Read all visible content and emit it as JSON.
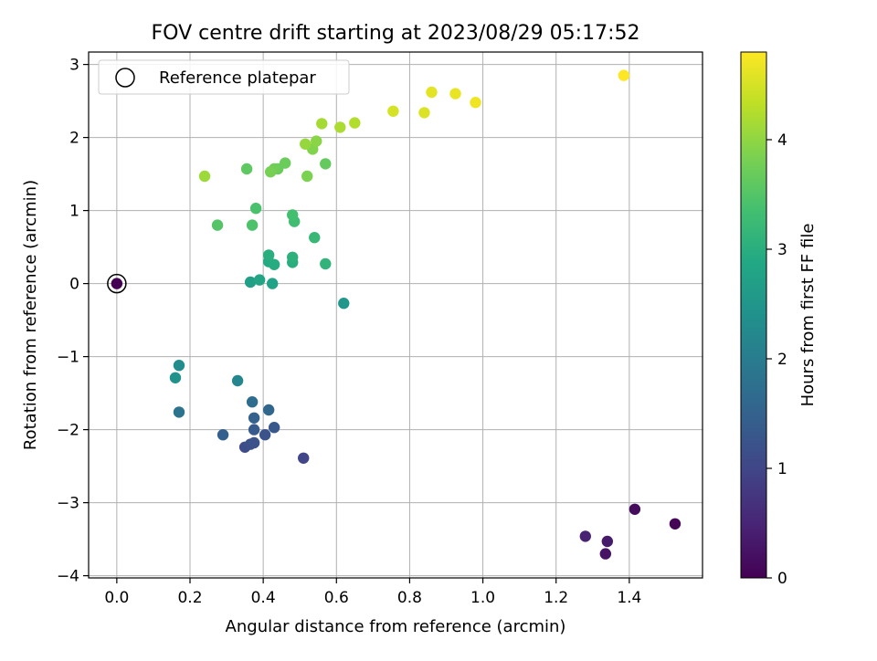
{
  "chart_data": {
    "type": "scatter",
    "title": "FOV centre drift starting at 2023/08/29 05:17:52",
    "xlabel": "Angular distance from reference (arcmin)",
    "ylabel": "Rotation from reference (arcmin)",
    "xlim": [
      -0.077,
      1.6
    ],
    "ylim": [
      -4.03,
      3.17
    ],
    "xticks": [
      0.0,
      0.2,
      0.4,
      0.6,
      0.8,
      1.0,
      1.2,
      1.4
    ],
    "xtick_labels": [
      "0.0",
      "0.2",
      "0.4",
      "0.6",
      "0.8",
      "1.0",
      "1.2",
      "1.4"
    ],
    "yticks": [
      -4,
      -3,
      -2,
      -1,
      0,
      1,
      2,
      3
    ],
    "ytick_labels": [
      "−4",
      "−3",
      "−2",
      "−1",
      "0",
      "1",
      "2",
      "3"
    ],
    "grid": true,
    "legend": {
      "placement": "upper-left",
      "entries": [
        "Reference platepar"
      ]
    },
    "colorbar": {
      "label": "Hours from first FF file",
      "colormap": "viridis",
      "range": [
        0,
        4.8
      ],
      "ticks": [
        0,
        1,
        2,
        3,
        4
      ],
      "tick_labels": [
        "0",
        "1",
        "2",
        "3",
        "4"
      ]
    },
    "reference_point": {
      "x": 0.0,
      "y": 0.0
    },
    "points": [
      {
        "x": 0.0,
        "y": 0.0,
        "h": 0.0
      },
      {
        "x": 1.525,
        "y": -3.29,
        "h": 0.05
      },
      {
        "x": 1.415,
        "y": -3.09,
        "h": 0.15
      },
      {
        "x": 1.335,
        "y": -3.7,
        "h": 0.25
      },
      {
        "x": 1.34,
        "y": -3.53,
        "h": 0.35
      },
      {
        "x": 1.28,
        "y": -3.46,
        "h": 0.45
      },
      {
        "x": 0.51,
        "y": -2.39,
        "h": 1.0
      },
      {
        "x": 0.35,
        "y": -2.24,
        "h": 1.1
      },
      {
        "x": 0.365,
        "y": -2.2,
        "h": 1.15
      },
      {
        "x": 0.375,
        "y": -2.18,
        "h": 1.2
      },
      {
        "x": 0.405,
        "y": -2.07,
        "h": 1.25
      },
      {
        "x": 0.43,
        "y": -1.97,
        "h": 1.3
      },
      {
        "x": 0.375,
        "y": -2.0,
        "h": 1.35
      },
      {
        "x": 0.29,
        "y": -2.07,
        "h": 1.45
      },
      {
        "x": 0.375,
        "y": -1.84,
        "h": 1.5
      },
      {
        "x": 0.415,
        "y": -1.73,
        "h": 1.6
      },
      {
        "x": 0.37,
        "y": -1.62,
        "h": 1.7
      },
      {
        "x": 0.17,
        "y": -1.76,
        "h": 1.85
      },
      {
        "x": 0.33,
        "y": -1.33,
        "h": 2.2
      },
      {
        "x": 0.17,
        "y": -1.12,
        "h": 2.3
      },
      {
        "x": 0.16,
        "y": -1.29,
        "h": 2.4
      },
      {
        "x": 0.62,
        "y": -0.27,
        "h": 2.5
      },
      {
        "x": 0.365,
        "y": 0.02,
        "h": 2.7
      },
      {
        "x": 0.425,
        "y": 0.0,
        "h": 2.75
      },
      {
        "x": 0.39,
        "y": 0.05,
        "h": 2.8
      },
      {
        "x": 0.415,
        "y": 0.3,
        "h": 2.9
      },
      {
        "x": 0.43,
        "y": 0.26,
        "h": 2.95
      },
      {
        "x": 0.48,
        "y": 0.29,
        "h": 3.0
      },
      {
        "x": 0.415,
        "y": 0.39,
        "h": 3.0
      },
      {
        "x": 0.48,
        "y": 0.36,
        "h": 3.05
      },
      {
        "x": 0.57,
        "y": 0.27,
        "h": 3.1
      },
      {
        "x": 0.54,
        "y": 0.63,
        "h": 3.2
      },
      {
        "x": 0.485,
        "y": 0.85,
        "h": 3.3
      },
      {
        "x": 0.48,
        "y": 0.94,
        "h": 3.35
      },
      {
        "x": 0.38,
        "y": 1.03,
        "h": 3.4
      },
      {
        "x": 0.37,
        "y": 0.8,
        "h": 3.45
      },
      {
        "x": 0.275,
        "y": 0.8,
        "h": 3.5
      },
      {
        "x": 0.355,
        "y": 1.57,
        "h": 3.6
      },
      {
        "x": 0.57,
        "y": 1.64,
        "h": 3.65
      },
      {
        "x": 0.46,
        "y": 1.65,
        "h": 3.7
      },
      {
        "x": 0.44,
        "y": 1.57,
        "h": 3.7
      },
      {
        "x": 0.43,
        "y": 1.57,
        "h": 3.75
      },
      {
        "x": 0.42,
        "y": 1.53,
        "h": 3.8
      },
      {
        "x": 0.52,
        "y": 1.47,
        "h": 3.85
      },
      {
        "x": 0.535,
        "y": 1.84,
        "h": 3.9
      },
      {
        "x": 0.545,
        "y": 1.95,
        "h": 3.95
      },
      {
        "x": 0.515,
        "y": 1.91,
        "h": 4.05
      },
      {
        "x": 0.24,
        "y": 1.47,
        "h": 4.1
      },
      {
        "x": 0.56,
        "y": 2.19,
        "h": 4.15
      },
      {
        "x": 0.61,
        "y": 2.14,
        "h": 4.2
      },
      {
        "x": 0.65,
        "y": 2.2,
        "h": 4.25
      },
      {
        "x": 0.755,
        "y": 2.36,
        "h": 4.5
      },
      {
        "x": 0.84,
        "y": 2.34,
        "h": 4.55
      },
      {
        "x": 0.86,
        "y": 2.62,
        "h": 4.6
      },
      {
        "x": 0.925,
        "y": 2.6,
        "h": 4.65
      },
      {
        "x": 0.98,
        "y": 2.48,
        "h": 4.7
      },
      {
        "x": 1.385,
        "y": 2.85,
        "h": 4.8
      }
    ]
  }
}
